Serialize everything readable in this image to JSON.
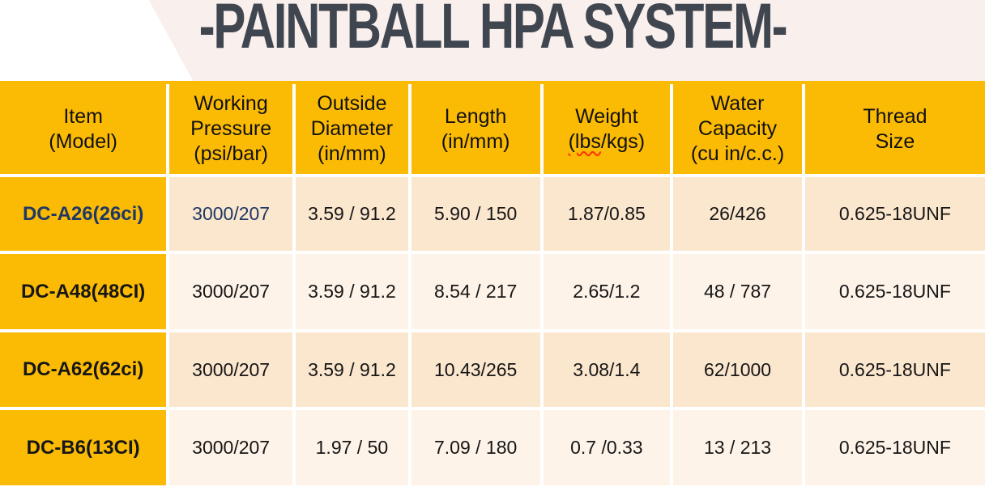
{
  "title": "-PAINTBALL HPA SYSTEM-",
  "colors": {
    "accent_yellow": "#fbbb05",
    "row_peach": "#fbe6ce",
    "row_cream": "#fdf3e8",
    "banner_pink": "#f9efec",
    "title_gray": "#404650",
    "highlight_navy": "#1f3864",
    "spellcheck_red": "#ff3000"
  },
  "table": {
    "columns": [
      {
        "id": "item",
        "lines": [
          "Item",
          "(Model)"
        ]
      },
      {
        "id": "working-pressure",
        "lines": [
          "Working",
          "Pressure",
          "(psi/bar)"
        ]
      },
      {
        "id": "outside-diameter",
        "lines": [
          "Outside",
          "Diameter",
          "(in/mm)"
        ]
      },
      {
        "id": "length",
        "lines": [
          "Length",
          "(in/mm)"
        ]
      },
      {
        "id": "weight",
        "lines": [
          "Weight"
        ],
        "line2_parts": [
          "(lbs",
          "/kgs)"
        ]
      },
      {
        "id": "water-capacity",
        "lines": [
          "Water",
          "Capacity",
          "(cu in/c.c.)"
        ]
      },
      {
        "id": "thread-size",
        "lines": [
          "Thread",
          "Size"
        ]
      }
    ],
    "rows": [
      {
        "model": "DC-A26(26ci)",
        "working_pressure": "3000/207",
        "outside_diameter": "3.59 / 91.2",
        "length": "5.90 / 150",
        "weight": "1.87/0.85",
        "water_capacity": "26/426",
        "thread_size": "0.625-18UNF"
      },
      {
        "model": "DC-A48(48CI)",
        "working_pressure": "3000/207",
        "outside_diameter": "3.59 / 91.2",
        "length": "8.54 / 217",
        "weight": "2.65/1.2",
        "water_capacity": "48 / 787",
        "thread_size": "0.625-18UNF"
      },
      {
        "model": "DC-A62(62ci)",
        "working_pressure": "3000/207",
        "outside_diameter": "3.59 / 91.2",
        "length": "10.43/265",
        "weight": "3.08/1.4",
        "water_capacity": "62/1000",
        "thread_size": "0.625-18UNF"
      },
      {
        "model": "DC-B6(13CI)",
        "working_pressure": "3000/207",
        "outside_diameter": "1.97 / 50",
        "length": "7.09 / 180",
        "weight": "0.7 /0.33",
        "water_capacity": "13 / 213",
        "thread_size": "0.625-18UNF"
      }
    ]
  }
}
